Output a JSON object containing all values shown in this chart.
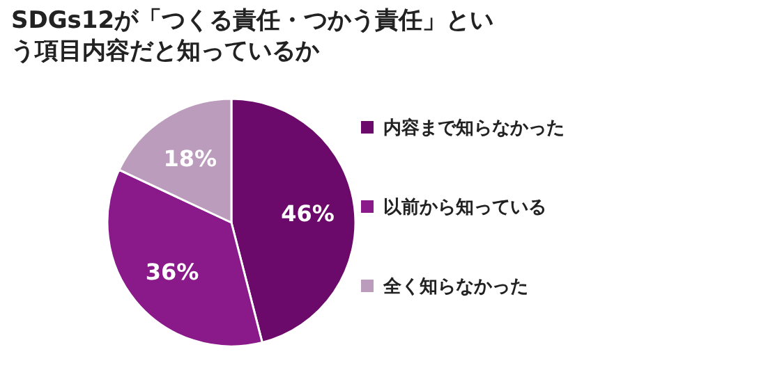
{
  "chart_data": {
    "type": "pie",
    "title": "SDGs12が「つくる責任・つかう責任」という項目内容だと知っているか",
    "categories": [
      "内容まで知らなかった",
      "以前から知っている",
      "全く知らなかった"
    ],
    "values": [
      46,
      36,
      18
    ],
    "colors": [
      "#6b0a6b",
      "#8a1a8a",
      "#bc9cbc"
    ],
    "value_labels": [
      "46%",
      "36%",
      "18%"
    ],
    "legend": "right"
  }
}
